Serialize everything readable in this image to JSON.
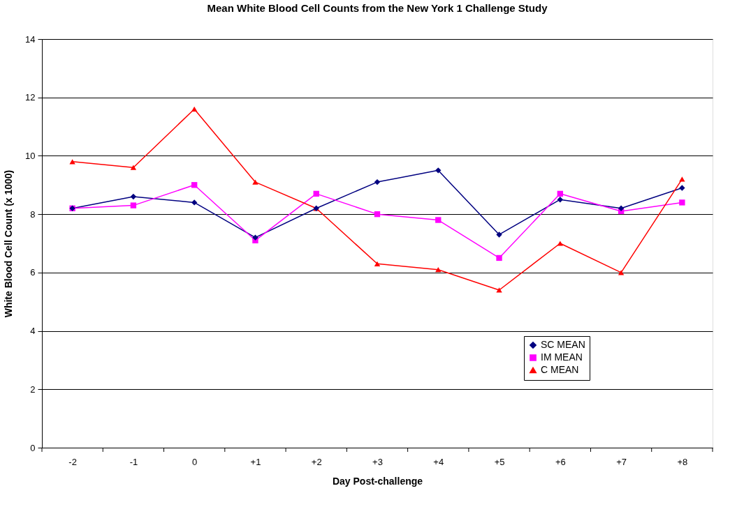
{
  "chart_data": {
    "type": "line",
    "title": "Mean White Blood Cell Counts from the New York 1 Challenge Study",
    "xlabel": "Day Post-challenge",
    "ylabel": "White Blood Cell Count (x 1000)",
    "categories": [
      "-2",
      "-1",
      "0",
      "+1",
      "+2",
      "+3",
      "+4",
      "+5",
      "+6",
      "+7",
      "+8"
    ],
    "series": [
      {
        "name": "SC MEAN",
        "color": "#000080",
        "marker": "diamond",
        "values": [
          8.2,
          8.6,
          8.4,
          7.2,
          8.2,
          9.1,
          9.5,
          7.3,
          8.5,
          8.2,
          8.9
        ]
      },
      {
        "name": "IM MEAN",
        "color": "#ff00ff",
        "marker": "square",
        "values": [
          8.2,
          8.3,
          9.0,
          7.1,
          8.7,
          8.0,
          7.8,
          6.5,
          8.7,
          8.1,
          8.4
        ]
      },
      {
        "name": "C MEAN",
        "color": "#ff0000",
        "marker": "triangle",
        "values": [
          9.8,
          9.6,
          11.6,
          9.1,
          8.2,
          6.3,
          6.1,
          5.4,
          7.0,
          6.0,
          9.2
        ]
      }
    ],
    "ylim": [
      0,
      14
    ],
    "yticks": [
      0,
      2,
      4,
      6,
      8,
      10,
      12,
      14
    ],
    "grid": "y",
    "legend": "bottom right",
    "line_style": "solid"
  }
}
